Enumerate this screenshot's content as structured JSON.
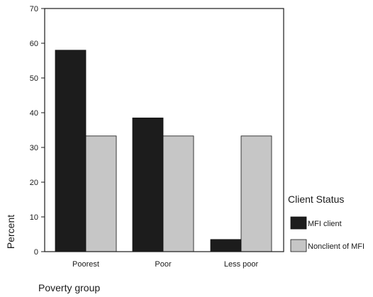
{
  "chart_data": {
    "type": "bar",
    "categories": [
      "Poorest",
      "Poor",
      "Less poor"
    ],
    "series": [
      {
        "name": "MFI client",
        "values": [
          58,
          38.5,
          3.5
        ],
        "color": "#1c1c1c"
      },
      {
        "name": "Nonclient of MFI",
        "values": [
          33.3,
          33.3,
          33.3
        ],
        "color": "#c6c6c6"
      }
    ],
    "ylim": [
      0,
      70
    ],
    "yticks": [
      0,
      10,
      20,
      30,
      40,
      50,
      60,
      70
    ],
    "ylabel": "Percent",
    "xlabel": "Poverty group",
    "legend_title": "Client Status",
    "legend_position": "right",
    "grid": false
  }
}
